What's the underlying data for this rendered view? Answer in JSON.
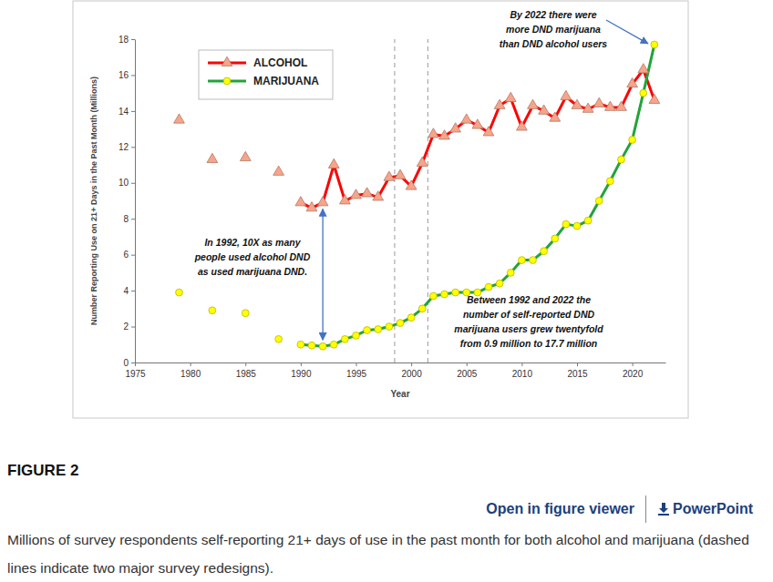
{
  "chart_data": {
    "type": "line",
    "xlabel": "Year",
    "ylabel": "Number Reporting Use on 21+ Days in the Past Month (Millions)",
    "xlim": [
      1975,
      2023
    ],
    "xticks": [
      1975,
      1980,
      1985,
      1990,
      1995,
      2000,
      2005,
      2010,
      2015,
      2020
    ],
    "ylim": [
      0,
      18
    ],
    "yticks": [
      0,
      2,
      4,
      6,
      8,
      10,
      12,
      14,
      16,
      18
    ],
    "grid": false,
    "legend": "upper left",
    "series": [
      {
        "type": "scatter",
        "marker": "triangle",
        "color": "#f6a58a",
        "x": [
          1979,
          1982,
          1985,
          1988
        ],
        "values": [
          13.5,
          11.3,
          11.4,
          10.6
        ]
      },
      {
        "name": "ALCOHOL",
        "type": "line",
        "marker": "triangle",
        "color": "#ff0000",
        "x": [
          1990,
          1991,
          1992,
          1993,
          1994,
          1995,
          1996,
          1997,
          1998,
          1999,
          2000,
          2001,
          2002,
          2003,
          2004,
          2005,
          2006,
          2007,
          2008,
          2009,
          2010,
          2011,
          2012,
          2013,
          2014,
          2015,
          2016,
          2017,
          2018,
          2019,
          2020,
          2021,
          2022
        ],
        "values": [
          8.9,
          8.6,
          8.9,
          11.0,
          9.0,
          9.3,
          9.4,
          9.2,
          10.3,
          10.4,
          9.8,
          11.1,
          12.7,
          12.6,
          13.0,
          13.5,
          13.2,
          12.8,
          14.3,
          14.7,
          13.1,
          14.3,
          14.0,
          13.6,
          14.8,
          14.3,
          14.1,
          14.4,
          14.2,
          14.2,
          15.5,
          16.3,
          14.6
        ]
      },
      {
        "type": "scatter",
        "marker": "circle",
        "color": "#ffff00",
        "x": [
          1979,
          1982,
          1985,
          1988
        ],
        "values": [
          3.9,
          2.9,
          2.75,
          1.3
        ]
      },
      {
        "name": "MARIJUANA",
        "type": "line",
        "marker": "circle",
        "color": "#22a33a",
        "x": [
          1990,
          1991,
          1992,
          1993,
          1994,
          1995,
          1996,
          1997,
          1998,
          1999,
          2000,
          2001,
          2002,
          2003,
          2004,
          2005,
          2006,
          2007,
          2008,
          2009,
          2010,
          2011,
          2012,
          2013,
          2014,
          2015,
          2016,
          2017,
          2018,
          2019,
          2020,
          2021,
          2022
        ],
        "values": [
          1.0,
          0.95,
          0.9,
          1.0,
          1.3,
          1.5,
          1.8,
          1.85,
          2.0,
          2.2,
          2.5,
          3.0,
          3.7,
          3.8,
          3.9,
          3.9,
          3.9,
          4.2,
          4.4,
          5.0,
          5.7,
          5.7,
          6.2,
          6.9,
          7.7,
          7.6,
          7.9,
          9.0,
          10.1,
          11.3,
          12.4,
          15.0,
          17.7
        ]
      }
    ],
    "survey_redesigns": [
      1998.5,
      2001.5
    ],
    "annotations": [
      {
        "lines": [
          "By 2022  there were",
          "more DND marijuana",
          "than DND alcohol users"
        ],
        "arrow": {
          "x": 2022,
          "y": 17.7
        }
      },
      {
        "lines": [
          "In 1992, 10X as many",
          "people used alcohol DND",
          "as used marijuana DND."
        ],
        "arrow": {
          "x": 1992,
          "y": [
            8.9,
            0.9
          ]
        }
      },
      {
        "lines": [
          "Between 1992 and 2022 the",
          "number of self-reported DND",
          "marijuana users grew twentyfold",
          "from 0.9 million to 17.7 million"
        ]
      }
    ]
  },
  "page": {
    "figure_label": "FIGURE 2",
    "links": [
      "Open in figure viewer",
      "PowerPoint"
    ],
    "caption": "Millions of survey respondents self-reporting 21+ days of use in the past month for both alcohol and marijuana (dashed lines indicate two major survey redesigns)."
  }
}
